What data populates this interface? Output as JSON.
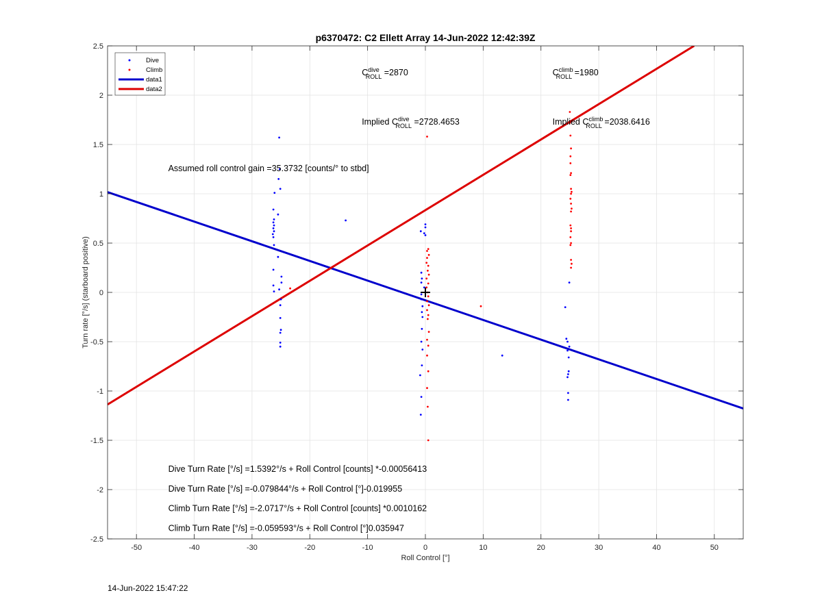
{
  "chart_data": {
    "type": "scatter",
    "title": "p6370472: C2 Ellett Array 14-Jun-2022 12:42:39Z",
    "xlabel": "Roll Control [°]",
    "ylabel": "Turn rate [°/s] (starboard positive)",
    "xlim": [
      -55,
      55
    ],
    "ylim": [
      -2.5,
      2.5
    ],
    "xticks": [
      -50,
      -40,
      -30,
      -20,
      -10,
      0,
      10,
      20,
      30,
      40,
      50
    ],
    "yticks": [
      -2.5,
      -2,
      -1.5,
      -1,
      -0.5,
      0,
      0.5,
      1,
      1.5,
      2,
      2.5
    ],
    "grid": true,
    "legend_position": "top-left",
    "colors": {
      "dive": "#0000ff",
      "climb": "#ff0000",
      "data1": "#0000cc",
      "data2": "#dd0000",
      "marker": "#000000"
    },
    "series": [
      {
        "name": "Dive",
        "kind": "points",
        "points": [
          [
            -25.3,
            1.57
          ],
          [
            -25.2,
            1.25
          ],
          [
            -25.4,
            1.15
          ],
          [
            -25.1,
            1.05
          ],
          [
            -26.1,
            1.01
          ],
          [
            -26.3,
            0.84
          ],
          [
            -25.5,
            0.79
          ],
          [
            -26.2,
            0.74
          ],
          [
            -26.3,
            0.71
          ],
          [
            -26.2,
            0.68
          ],
          [
            -26.3,
            0.65
          ],
          [
            -26.2,
            0.62
          ],
          [
            -26.4,
            0.59
          ],
          [
            -26.3,
            0.56
          ],
          [
            -26.2,
            0.48
          ],
          [
            -25.5,
            0.36
          ],
          [
            -26.3,
            0.23
          ],
          [
            -24.9,
            0.16
          ],
          [
            -24.9,
            0.1
          ],
          [
            -26.3,
            0.07
          ],
          [
            -25.3,
            0.03
          ],
          [
            -26.2,
            0.01
          ],
          [
            -25.0,
            -0.07
          ],
          [
            -25.1,
            -0.13
          ],
          [
            -25.1,
            -0.26
          ],
          [
            -25.0,
            -0.38
          ],
          [
            -25.1,
            -0.41
          ],
          [
            -25.1,
            -0.51
          ],
          [
            -25.1,
            -0.55
          ],
          [
            -13.8,
            0.73
          ],
          [
            0.0,
            0.69
          ],
          [
            0.0,
            0.66
          ],
          [
            -0.8,
            0.62
          ],
          [
            -0.2,
            0.6
          ],
          [
            0.0,
            0.58
          ],
          [
            -0.7,
            0.2
          ],
          [
            -0.6,
            0.14
          ],
          [
            -0.7,
            0.1
          ],
          [
            -0.2,
            0.05
          ],
          [
            -0.7,
            -0.02
          ],
          [
            -0.7,
            -0.07
          ],
          [
            -0.5,
            -0.14
          ],
          [
            -0.6,
            -0.2
          ],
          [
            -0.5,
            -0.25
          ],
          [
            -0.6,
            -0.37
          ],
          [
            -0.7,
            -0.5
          ],
          [
            -0.5,
            -0.58
          ],
          [
            -0.6,
            -0.74
          ],
          [
            -0.9,
            -0.84
          ],
          [
            -0.7,
            -1.06
          ],
          [
            -0.8,
            -1.24
          ],
          [
            13.3,
            -0.64
          ],
          [
            24.9,
            0.1
          ],
          [
            24.2,
            -0.15
          ],
          [
            24.4,
            -0.47
          ],
          [
            24.6,
            -0.5
          ],
          [
            24.9,
            -0.55
          ],
          [
            24.6,
            -0.59
          ],
          [
            24.8,
            -0.66
          ],
          [
            24.8,
            -0.8
          ],
          [
            24.7,
            -0.83
          ],
          [
            24.6,
            -0.86
          ],
          [
            24.7,
            -1.02
          ],
          [
            24.7,
            -1.09
          ]
        ]
      },
      {
        "name": "Climb",
        "kind": "points",
        "points": [
          [
            -23.4,
            0.04
          ],
          [
            0.3,
            1.58
          ],
          [
            0.5,
            0.44
          ],
          [
            0.3,
            0.42
          ],
          [
            0.6,
            0.38
          ],
          [
            0.3,
            0.35
          ],
          [
            0.2,
            0.3
          ],
          [
            0.5,
            0.27
          ],
          [
            0.4,
            0.22
          ],
          [
            0.6,
            0.18
          ],
          [
            0.2,
            0.14
          ],
          [
            0.5,
            0.09
          ],
          [
            0.2,
            0.05
          ],
          [
            0.4,
            0.0
          ],
          [
            0.5,
            -0.04
          ],
          [
            0.3,
            -0.09
          ],
          [
            0.6,
            -0.13
          ],
          [
            0.3,
            -0.18
          ],
          [
            0.5,
            -0.23
          ],
          [
            0.4,
            -0.27
          ],
          [
            0.6,
            -0.4
          ],
          [
            0.3,
            -0.48
          ],
          [
            0.5,
            -0.54
          ],
          [
            0.3,
            -0.64
          ],
          [
            0.5,
            -0.8
          ],
          [
            0.3,
            -0.97
          ],
          [
            0.4,
            -1.16
          ],
          [
            0.5,
            -1.5
          ],
          [
            9.6,
            -0.14
          ],
          [
            25.0,
            1.83
          ],
          [
            25.0,
            1.72
          ],
          [
            25.1,
            1.59
          ],
          [
            25.2,
            1.46
          ],
          [
            25.1,
            1.38
          ],
          [
            25.1,
            1.31
          ],
          [
            25.2,
            1.21
          ],
          [
            25.1,
            1.19
          ],
          [
            25.2,
            1.05
          ],
          [
            25.3,
            1.02
          ],
          [
            25.2,
            1.0
          ],
          [
            25.1,
            0.95
          ],
          [
            25.2,
            0.9
          ],
          [
            25.3,
            0.85
          ],
          [
            25.2,
            0.82
          ],
          [
            25.1,
            0.68
          ],
          [
            25.2,
            0.65
          ],
          [
            25.2,
            0.62
          ],
          [
            25.1,
            0.56
          ],
          [
            25.2,
            0.5
          ],
          [
            25.1,
            0.48
          ],
          [
            25.2,
            0.33
          ],
          [
            25.3,
            0.29
          ],
          [
            25.2,
            0.25
          ]
        ]
      },
      {
        "name": "data1",
        "kind": "line",
        "points": [
          [
            -55,
            1.0176
          ],
          [
            55,
            -1.1775
          ]
        ]
      },
      {
        "name": "data2",
        "kind": "line",
        "points": [
          [
            -55,
            -1.1366
          ],
          [
            46.5,
            2.5
          ]
        ]
      }
    ],
    "marker": {
      "x": 0,
      "y": 0,
      "symbol": "+"
    },
    "annotations": {
      "c_dive": {
        "prefix": "C",
        "sup": "dive",
        "sub": "ROLL",
        "suffix": " =2870",
        "x": -11,
        "y": 2.2
      },
      "c_climb": {
        "prefix": "C",
        "sup": "climb",
        "sub": "ROLL",
        "suffix": " =1980",
        "x": 22,
        "y": 2.2
      },
      "implied_dive": {
        "prefix": "Implied C",
        "sup": "dive",
        "sub": "ROLL",
        "suffix": " =2728.4653",
        "x": -11,
        "y": 1.7
      },
      "implied_climb": {
        "prefix": "Implied C",
        "sup": "climb",
        "sub": "ROLL",
        "suffix": " =2038.6416",
        "x": 22,
        "y": 1.7
      },
      "gain": {
        "text": "Assumed roll control gain =35.3732 [counts/° to stbd]",
        "x": -44.5,
        "y": 1.23
      },
      "eq1": {
        "text": "Dive Turn Rate [°/s] =1.5392°/s + Roll Control [counts] *-0.00056413",
        "x": -44.5,
        "y": -1.82
      },
      "eq2": {
        "text": "Dive Turn Rate [°/s] =-0.079844°/s + Roll Control [°]-0.019955",
        "x": -44.5,
        "y": -2.02
      },
      "eq3": {
        "text": "Climb Turn Rate [°/s] =-2.0717°/s + Roll Control [counts] *0.0010162",
        "x": -44.5,
        "y": -2.22
      },
      "eq4": {
        "text": "Climb Turn Rate [°/s] =-0.059593°/s + Roll Control [°]0.035947",
        "x": -44.5,
        "y": -2.42
      }
    }
  },
  "footer": {
    "timestamp": "14-Jun-2022 15:47:22"
  }
}
